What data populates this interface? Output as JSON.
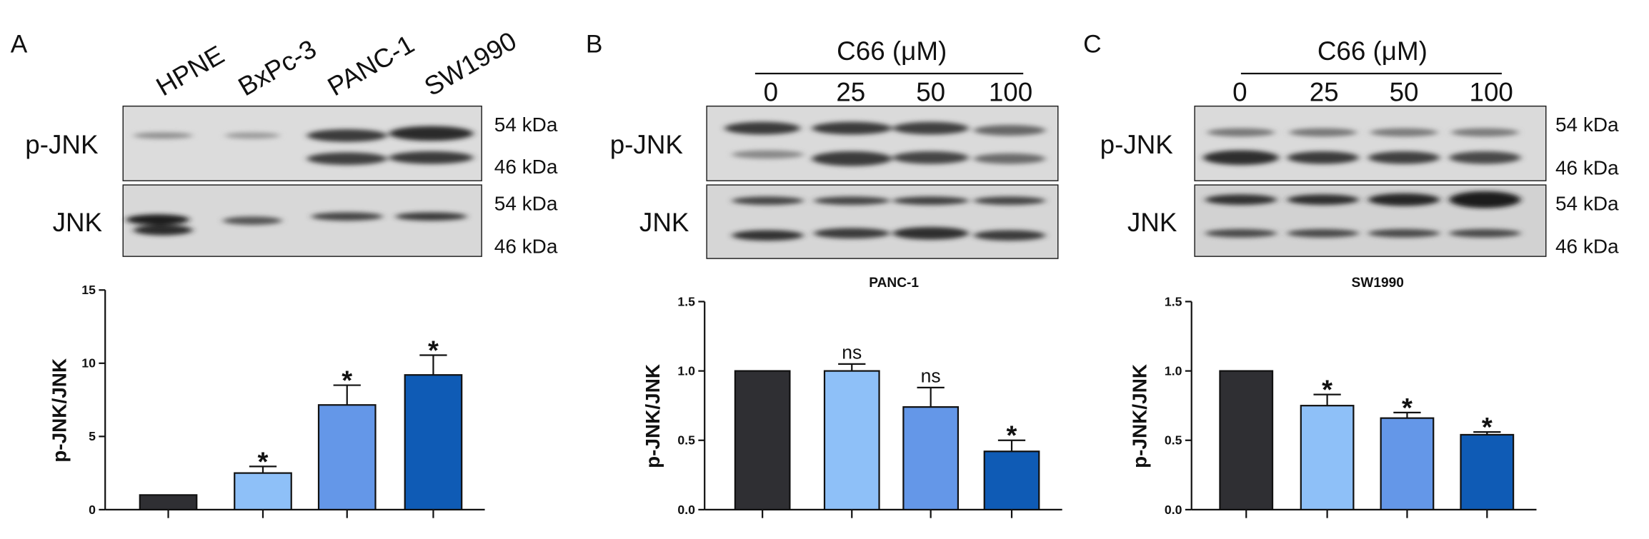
{
  "panels": [
    {
      "id": "A",
      "letter": "A",
      "header": "",
      "lanes": [
        "HPNE",
        "BxPc-3",
        "PANC-1",
        "SW1990"
      ],
      "blots": [
        {
          "protein": "p-JNK",
          "mw": [
            "54 kDa",
            "46 kDa"
          ]
        },
        {
          "protein": "JNK",
          "mw": [
            "54 kDa",
            "46 kDa"
          ]
        }
      ]
    },
    {
      "id": "B",
      "letter": "B",
      "header": "C66 (μM)",
      "lanes": [
        "0",
        "25",
        "50",
        "100"
      ],
      "blots": [
        {
          "protein": "p-JNK",
          "mw": [
            "",
            ""
          ]
        },
        {
          "protein": "JNK",
          "mw": [
            "",
            ""
          ]
        }
      ]
    },
    {
      "id": "C",
      "letter": "C",
      "header": "C66 (μM)",
      "lanes": [
        "0",
        "25",
        "50",
        "100"
      ],
      "blots": [
        {
          "protein": "p-JNK",
          "mw": [
            "54 kDa",
            "46 kDa"
          ]
        },
        {
          "protein": "JNK",
          "mw": [
            "54 kDa",
            "46 kDa"
          ]
        }
      ]
    }
  ],
  "chart_data": [
    {
      "type": "bar",
      "title": "",
      "xlabel": "",
      "ylabel": "p-JNK/JNK",
      "ylim": [
        0,
        15
      ],
      "yticks": [
        "0",
        "5",
        "10",
        "15"
      ],
      "categories": [
        "HPNE",
        "BxPc-3",
        "PANC-1",
        "SW1990"
      ],
      "values": [
        1.0,
        2.5,
        7.15,
        9.2
      ],
      "errors": [
        0,
        0.45,
        1.35,
        1.35
      ],
      "significance": [
        "",
        "*",
        "*",
        "*"
      ],
      "colors": [
        "#2f2f33",
        "#8ec0f8",
        "#6497e8",
        "#0f5bb5"
      ]
    },
    {
      "type": "bar",
      "title": "PANC-1",
      "xlabel": "",
      "ylabel": "p-JNK/JNK",
      "ylim": [
        0,
        1.5
      ],
      "yticks": [
        "0.0",
        "0.5",
        "1.0",
        "1.5"
      ],
      "categories": [
        "0",
        "25",
        "50",
        "100"
      ],
      "values": [
        1.0,
        1.0,
        0.74,
        0.42
      ],
      "errors": [
        0,
        0.05,
        0.14,
        0.08
      ],
      "significance": [
        "",
        "ns",
        "ns",
        "*"
      ],
      "colors": [
        "#2f2f33",
        "#8ec0f8",
        "#6497e8",
        "#0f5bb5"
      ]
    },
    {
      "type": "bar",
      "title": "SW1990",
      "xlabel": "",
      "ylabel": "p-JNK/JNK",
      "ylim": [
        0,
        1.5
      ],
      "yticks": [
        "0.0",
        "0.5",
        "1.0",
        "1.5"
      ],
      "categories": [
        "0",
        "25",
        "50",
        "100"
      ],
      "values": [
        1.0,
        0.75,
        0.66,
        0.54
      ],
      "errors": [
        0,
        0.08,
        0.04,
        0.02
      ],
      "significance": [
        "",
        "*",
        "*",
        "*"
      ],
      "colors": [
        "#2f2f33",
        "#8ec0f8",
        "#6497e8",
        "#0f5bb5"
      ]
    }
  ]
}
